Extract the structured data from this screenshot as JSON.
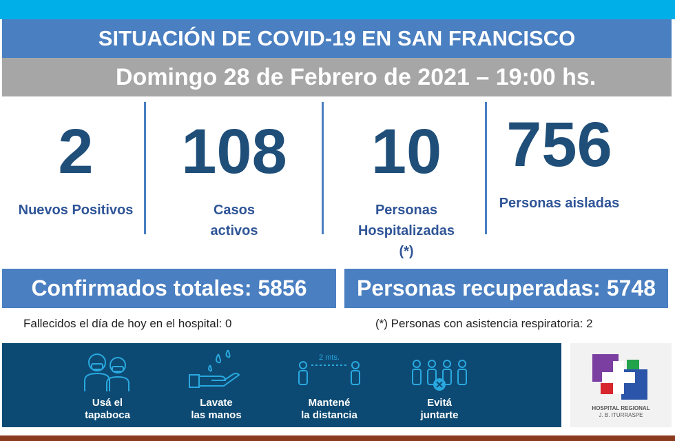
{
  "header": {
    "title": "SITUACIÓN DE COVID-19 EN SAN FRANCISCO",
    "date": "Domingo 28 de Febrero de 2021 – 19:00 hs."
  },
  "stats": [
    {
      "value": "2",
      "label_lines": [
        "Nuevos Positivos"
      ]
    },
    {
      "value": "108",
      "label_lines": [
        "Casos",
        "activos"
      ]
    },
    {
      "value": "10",
      "label_lines": [
        "Personas",
        "Hospitalizadas",
        "(*)"
      ]
    },
    {
      "value": "756",
      "label_lines": [
        "Personas aisladas"
      ]
    }
  ],
  "totals": {
    "confirmed": "Confirmados totales: 5856",
    "recovered": "Personas recuperadas: 5748"
  },
  "notes": {
    "deaths": "Fallecidos el día de hoy en el hospital:  0",
    "respiratory": "(*) Personas con asistencia respiratoria: 2"
  },
  "tips": [
    {
      "icon": "mask-people-icon",
      "lines": [
        "Usá el",
        "tapaboca"
      ]
    },
    {
      "icon": "hand-wash-icon",
      "lines": [
        "Lavate",
        "las manos"
      ]
    },
    {
      "icon": "distance-icon",
      "lines": [
        "Mantené",
        "la distancia"
      ],
      "distance_label": "2 mts."
    },
    {
      "icon": "no-gathering-icon",
      "lines": [
        "Evitá",
        "juntarte"
      ]
    }
  ],
  "logo": {
    "line1": "HOSPITAL REGIONAL",
    "line2": "J. B. ITURRASPE"
  },
  "colors": {
    "cyan": "#00aee8",
    "title_blue": "#4a7fc1",
    "number_blue": "#1f4e79",
    "banner": "#0d4a73",
    "icon": "#29a9e0"
  }
}
